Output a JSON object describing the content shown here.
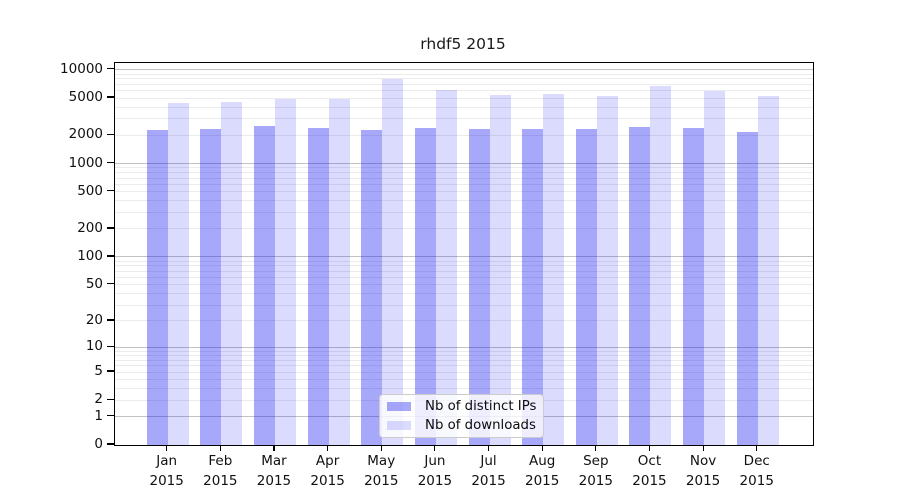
{
  "chart_data": {
    "type": "bar",
    "title": "rhdf5 2015",
    "categories": [
      "Jan",
      "Feb",
      "Mar",
      "Apr",
      "May",
      "Jun",
      "Jul",
      "Aug",
      "Sep",
      "Oct",
      "Nov",
      "Dec"
    ],
    "category_year": "2015",
    "series": [
      {
        "name": "Nb of distinct IPs",
        "color_hex": "#aaaafb",
        "fill_rgba": "rgba(0,0,240,0.34)",
        "values": [
          2280,
          2330,
          2500,
          2380,
          2280,
          2420,
          2340,
          2350,
          2350,
          2480,
          2400,
          2180
        ]
      },
      {
        "name": "Nb of downloads",
        "color_hex": "#dbdbfd",
        "fill_rgba": "rgba(0,0,240,0.14)",
        "values": [
          4400,
          4520,
          4860,
          4890,
          7900,
          6120,
          5380,
          5480,
          5290,
          6640,
          5970,
          5250
        ]
      }
    ],
    "yscale": "log10(1+x)",
    "ylim": [
      0,
      11800
    ],
    "yticks": [
      0,
      1,
      2,
      5,
      10,
      20,
      50,
      100,
      200,
      500,
      1000,
      2000,
      5000,
      10000
    ],
    "grid": "horizontal major + log-minor lines",
    "legend_position": "lower center"
  },
  "colors": {
    "grid_major": "#c2c2c2",
    "grid_minor": "#ebebeb",
    "axis": "#000000",
    "text": "#111111"
  }
}
